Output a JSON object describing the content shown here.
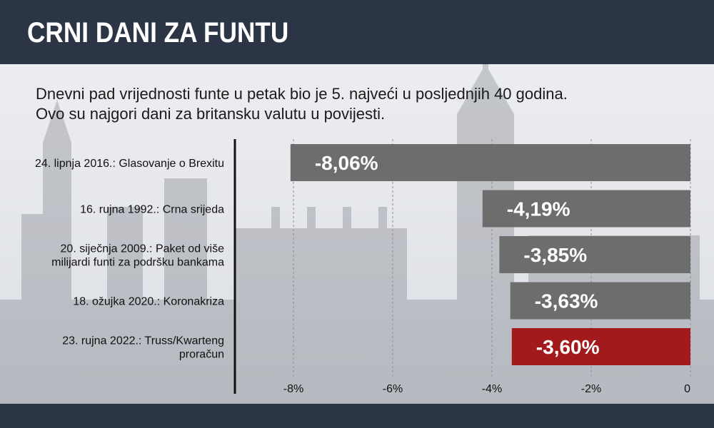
{
  "header": {
    "title": "CRNI DANI ZA FUNTU"
  },
  "subtitle": [
    "Dnevni pad vrijednosti funte u petak bio je 5. najveći u posljednjih 40 godina.",
    "Ovo su najgori dani za britansku valutu u povijesti."
  ],
  "colors": {
    "header": "#2c3545",
    "bar_default": "#6d6d6d",
    "bar_highlight": "#a31a1d"
  },
  "chart_data": {
    "type": "bar",
    "orientation": "horizontal",
    "categories": [
      [
        "24. lipnja 2016.: Glasovanje o Brexitu"
      ],
      [
        "16. rujna 1992.: Crna srijeda"
      ],
      [
        "20. siječnja 2009.: Paket od više",
        "milijardi funti za podršku bankama"
      ],
      [
        "18. ožujka 2020.: Koronakriza"
      ],
      [
        "23. rujna 2022.: Truss/Kwarteng",
        "proračun"
      ]
    ],
    "values": [
      -8.06,
      -4.19,
      -3.85,
      -3.63,
      -3.6
    ],
    "value_labels": [
      "-8,06%",
      "-4,19%",
      "-3,85%",
      "-3,63%",
      "-3,60%"
    ],
    "highlight_index": 4,
    "xlim": [
      -8,
      0
    ],
    "xticks": [
      -8,
      -6,
      -4,
      -2,
      0
    ],
    "xtick_labels": [
      "-8%",
      "-6%",
      "-4%",
      "-2%",
      "0"
    ],
    "grid": "vertical dashed"
  }
}
